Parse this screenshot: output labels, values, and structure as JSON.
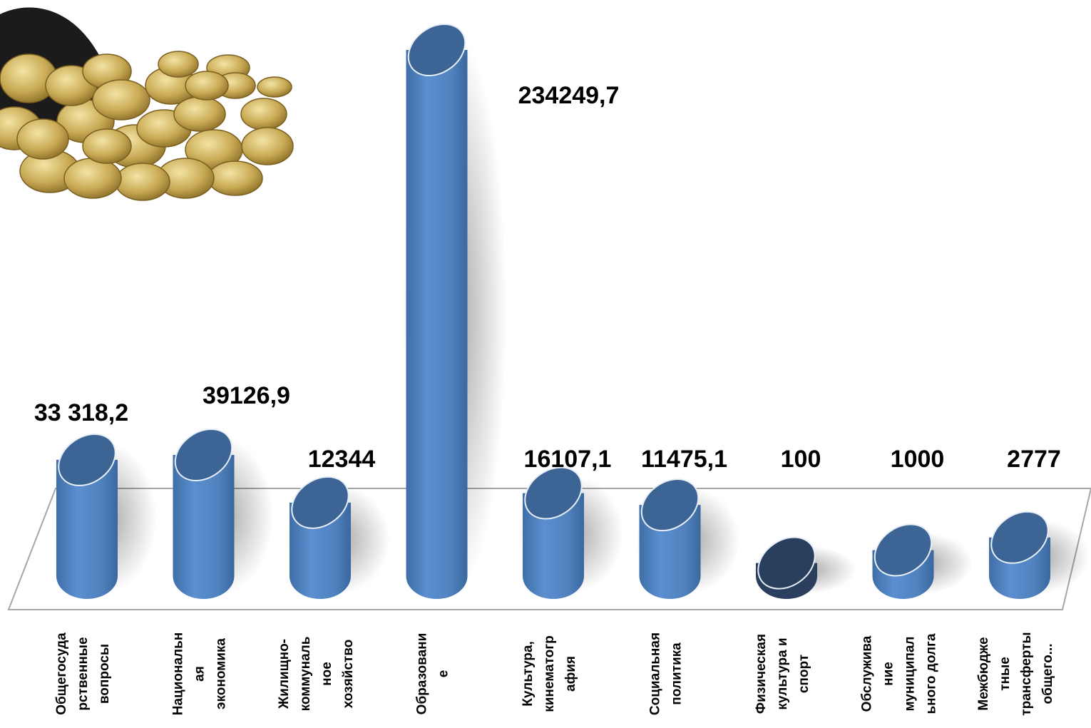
{
  "chart_data": {
    "type": "bar",
    "title": "",
    "xlabel": "",
    "ylabel": "",
    "ylim": [
      0,
      234249.7
    ],
    "grid": false,
    "legend": "none",
    "categories": [
      [
        "Общегосуда",
        "рственные",
        "вопросы"
      ],
      [
        "Национальн",
        "ая",
        "экономика"
      ],
      [
        "Жилищно-",
        "коммуналь",
        "ное",
        "хозяйство"
      ],
      [
        "Образовани",
        "е"
      ],
      [
        "Культура,",
        "кинематогр",
        "афия"
      ],
      [
        "Социальная",
        "политика"
      ],
      [
        "Физическая",
        "культура и",
        "спорт"
      ],
      [
        "Обслужива",
        "ние",
        "муниципал",
        "ьного долга"
      ],
      [
        "Межбюдже",
        "тные",
        "трансферты",
        "общего..."
      ]
    ],
    "values": [
      33318.2,
      39126.9,
      12344,
      234249.7,
      16107.1,
      11475.1,
      100,
      1000,
      2777
    ],
    "value_labels": [
      "33 318,2",
      "39126,9",
      "12344",
      "234249,7",
      "16107,1",
      "11475,1",
      "100",
      "1000",
      "2777"
    ],
    "colors": {
      "bar_body": "#4f81bd",
      "bar_top": "#3c6494",
      "bar_top_dark": "#2a3f5e",
      "platform_stroke": "#a6a6a6"
    }
  },
  "decoration": {
    "image": "coin-purse-with-coins"
  }
}
